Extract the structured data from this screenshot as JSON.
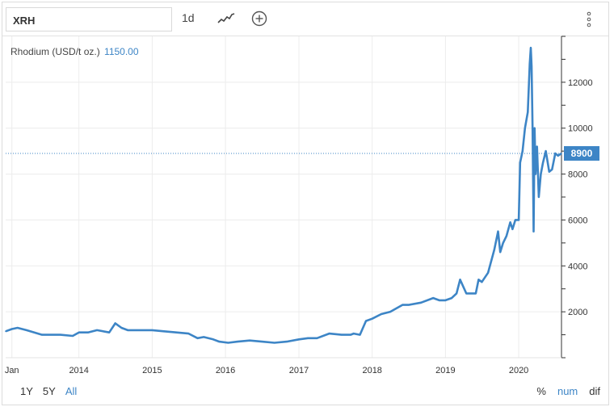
{
  "toolbar": {
    "symbol": "XRH",
    "interval": "1d",
    "line_icon": "line-chart-icon",
    "add_icon": "plus-circle-icon",
    "menu_icon": "vertical-dots-icon"
  },
  "legend": {
    "name": "Rhodium (USD/t oz.)",
    "value": "1150.00"
  },
  "range_buttons": [
    "1Y",
    "5Y",
    "All"
  ],
  "range_active": "All",
  "mode_buttons": [
    "%",
    "num",
    "dif"
  ],
  "mode_active": "num",
  "colors": {
    "line": "#3d85c6",
    "grid": "#ececec",
    "accent": "#3d85c6"
  },
  "chart_data": {
    "type": "line",
    "title": "",
    "xlabel": "",
    "ylabel": "",
    "x_ticks": [
      "Jan",
      "2014",
      "2015",
      "2016",
      "2017",
      "2018",
      "2019",
      "2020"
    ],
    "y_ticks": [
      2000,
      4000,
      6000,
      8000,
      10000,
      12000
    ],
    "ylim": [
      0,
      14000
    ],
    "xlim": [
      "2013-01-01",
      "2020-08-01"
    ],
    "last_value_label": "8900",
    "grid": true,
    "y_axis_side": "right",
    "series": [
      {
        "x": [
          "2013-01-01",
          "2013-02-01",
          "2013-03-01",
          "2013-04-15",
          "2013-07-01",
          "2013-10-01",
          "2013-12-01",
          "2014-01-01",
          "2014-02-15",
          "2014-04-01",
          "2014-06-01",
          "2014-07-01",
          "2014-08-01",
          "2014-09-01",
          "2014-10-15",
          "2014-12-01",
          "2015-01-01",
          "2015-03-01",
          "2015-05-01",
          "2015-07-01",
          "2015-08-15",
          "2015-09-15",
          "2015-11-01",
          "2015-12-01",
          "2016-01-15",
          "2016-03-01",
          "2016-05-01",
          "2016-07-01",
          "2016-09-01",
          "2016-11-01",
          "2017-01-01",
          "2017-02-15",
          "2017-04-01",
          "2017-06-01",
          "2017-08-01",
          "2017-09-15",
          "2017-10-01",
          "2017-11-01",
          "2017-12-01",
          "2018-01-01",
          "2018-02-15",
          "2018-04-01",
          "2018-06-01",
          "2018-07-01",
          "2018-09-01",
          "2018-11-01",
          "2018-12-01",
          "2019-01-01",
          "2019-02-01",
          "2019-02-25",
          "2019-03-15",
          "2019-04-15",
          "2019-06-01",
          "2019-06-15",
          "2019-07-01",
          "2019-08-01",
          "2019-09-01",
          "2019-09-20",
          "2019-10-01",
          "2019-10-15",
          "2019-11-01",
          "2019-11-20",
          "2019-12-01",
          "2019-12-15",
          "2020-01-01",
          "2020-01-08",
          "2020-01-20",
          "2020-02-01",
          "2020-02-15",
          "2020-02-25",
          "2020-03-01",
          "2020-03-05",
          "2020-03-10",
          "2020-03-15",
          "2020-03-20",
          "2020-03-25",
          "2020-04-01",
          "2020-04-10",
          "2020-04-20",
          "2020-05-01",
          "2020-05-15",
          "2020-06-01",
          "2020-06-15",
          "2020-07-01",
          "2020-07-15",
          "2020-08-01"
        ],
        "y": [
          1150,
          1250,
          1300,
          1200,
          1000,
          1000,
          950,
          1100,
          1100,
          1200,
          1100,
          1500,
          1300,
          1200,
          1200,
          1200,
          1200,
          1150,
          1100,
          1050,
          850,
          900,
          800,
          700,
          650,
          700,
          750,
          700,
          650,
          700,
          800,
          850,
          850,
          1050,
          1000,
          1000,
          1050,
          1000,
          1600,
          1700,
          1900,
          2000,
          2300,
          2300,
          2400,
          2600,
          2500,
          2500,
          2600,
          2800,
          3400,
          2800,
          2800,
          3400,
          3300,
          3700,
          4700,
          5500,
          4600,
          5000,
          5300,
          5900,
          5600,
          6000,
          6000,
          8500,
          9000,
          10000,
          10700,
          12800,
          13500,
          12700,
          10000,
          5500,
          10000,
          8000,
          9200,
          7000,
          8000,
          8500,
          9000,
          8100,
          8200,
          8900,
          8800,
          8900
        ]
      }
    ]
  }
}
